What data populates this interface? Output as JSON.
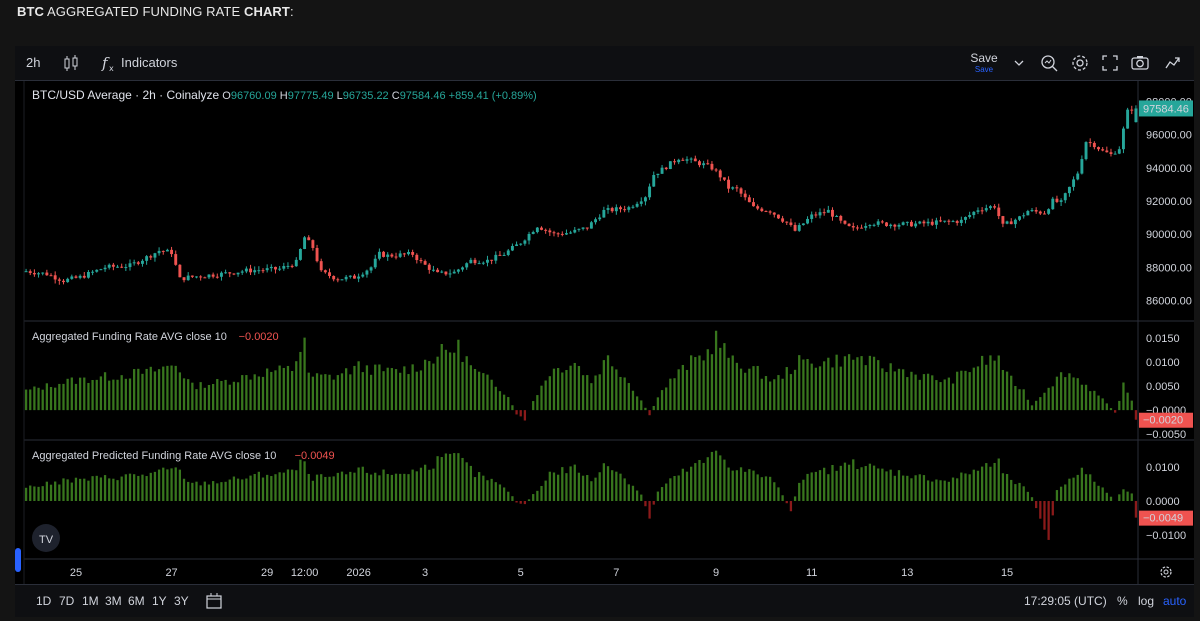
{
  "page": {
    "title_bold_1": "BTC",
    "title_middle": " AGGREGATED FUNDING RATE ",
    "title_bold_2": "CHART",
    "title_end": ":"
  },
  "toolbar": {
    "interval": "2h",
    "indicators": "Indicators",
    "save": "Save",
    "save_sub": "Save"
  },
  "bottom": {
    "ranges": [
      "1D",
      "7D",
      "1M",
      "3M",
      "6M",
      "1Y",
      "3Y"
    ],
    "time": "17:29:05 (UTC)",
    "percent": "%",
    "log": "log",
    "auto": "auto"
  },
  "colors": {
    "up": "#26a69a",
    "down": "#ef5350",
    "hist_up": "#38761d",
    "hist_down": "#8b1a1a",
    "grid": "#2a2e39",
    "accent": "#2962ff"
  },
  "chart_data": {
    "type": "candlestick",
    "title": "BTC/USD Average · 2h · Coinalyze",
    "ohlc": {
      "open": "96760.09",
      "high": "97775.49",
      "low": "96735.22",
      "close": "97584.46",
      "change": "+859.41 (+0.89%)"
    },
    "last_price": "97584.46",
    "y_ticks": [
      98000,
      96000,
      94000,
      92000,
      90000,
      88000,
      86000
    ],
    "y_tick_labels": [
      "98000.00",
      "96000.00",
      "94000.00",
      "92000.00",
      "90000.00",
      "88000.00",
      "86000.00"
    ],
    "ylim": [
      85000,
      99000
    ],
    "x_labels": [
      "25",
      "27",
      "29",
      "12:00",
      "2026",
      "3",
      "5",
      "7",
      "9",
      "11",
      "13",
      "15"
    ],
    "x_label_index": [
      12,
      35,
      58,
      67,
      80,
      96,
      119,
      142,
      166,
      189,
      212,
      236
    ],
    "price_path": [
      [
        0,
        87800
      ],
      [
        6,
        87600
      ],
      [
        10,
        87200
      ],
      [
        14,
        87400
      ],
      [
        20,
        88000
      ],
      [
        26,
        88100
      ],
      [
        30,
        88600
      ],
      [
        33,
        89000
      ],
      [
        36,
        88900
      ],
      [
        38,
        87300
      ],
      [
        40,
        87400
      ],
      [
        48,
        87600
      ],
      [
        54,
        87800
      ],
      [
        62,
        87900
      ],
      [
        66,
        88300
      ],
      [
        68,
        89800
      ],
      [
        70,
        89200
      ],
      [
        72,
        87700
      ],
      [
        76,
        87300
      ],
      [
        80,
        87400
      ],
      [
        84,
        88000
      ],
      [
        86,
        88800
      ],
      [
        88,
        88700
      ],
      [
        94,
        88800
      ],
      [
        96,
        88300
      ],
      [
        100,
        87600
      ],
      [
        104,
        87700
      ],
      [
        108,
        88400
      ],
      [
        112,
        88400
      ],
      [
        116,
        88800
      ],
      [
        120,
        89500
      ],
      [
        124,
        90500
      ],
      [
        128,
        90000
      ],
      [
        132,
        90100
      ],
      [
        136,
        90400
      ],
      [
        140,
        91400
      ],
      [
        146,
        91600
      ],
      [
        150,
        92300
      ],
      [
        152,
        93600
      ],
      [
        154,
        93900
      ],
      [
        158,
        94600
      ],
      [
        160,
        94500
      ],
      [
        164,
        94200
      ],
      [
        166,
        94000
      ],
      [
        168,
        93500
      ],
      [
        170,
        92800
      ],
      [
        172,
        92700
      ],
      [
        176,
        91600
      ],
      [
        180,
        91400
      ],
      [
        184,
        90700
      ],
      [
        186,
        90200
      ],
      [
        190,
        91100
      ],
      [
        194,
        91400
      ],
      [
        198,
        90500
      ],
      [
        200,
        90300
      ],
      [
        204,
        90700
      ],
      [
        208,
        90600
      ],
      [
        214,
        90600
      ],
      [
        220,
        90700
      ],
      [
        226,
        90800
      ],
      [
        230,
        91500
      ],
      [
        234,
        91700
      ],
      [
        236,
        90500
      ],
      [
        240,
        91000
      ],
      [
        242,
        91400
      ],
      [
        246,
        91300
      ],
      [
        248,
        92000
      ],
      [
        250,
        91900
      ],
      [
        252,
        92800
      ],
      [
        254,
        93700
      ],
      [
        256,
        95600
      ],
      [
        258,
        95400
      ],
      [
        260,
        95000
      ],
      [
        262,
        94800
      ],
      [
        264,
        95200
      ],
      [
        266,
        97400
      ],
      [
        267,
        97584
      ]
    ],
    "last_candle": {
      "open": 96760.09,
      "high": 97775.49,
      "low": 96735.22,
      "close": 97584.46
    },
    "candle_count": 268,
    "indicators": [
      {
        "name": "Aggregated Funding Rate AVG close 10",
        "value": "−0.0020",
        "last_value": -0.002,
        "y_ticks": [
          0.015,
          0.01,
          0.005,
          0,
          -0.005
        ],
        "y_tick_labels": [
          "0.0150",
          "0.0100",
          "0.0050",
          "−0.0000",
          "−0.0050"
        ],
        "ylim": [
          -0.0058,
          0.0175
        ],
        "badge": "−0.0020",
        "path": [
          [
            0,
            0.004
          ],
          [
            10,
            0.006
          ],
          [
            20,
            0.007
          ],
          [
            30,
            0.008
          ],
          [
            36,
            0.0095
          ],
          [
            40,
            0.005
          ],
          [
            48,
            0.006
          ],
          [
            58,
            0.008
          ],
          [
            64,
            0.0085
          ],
          [
            67,
            0.015
          ],
          [
            68,
            0.007
          ],
          [
            74,
            0.007
          ],
          [
            80,
            0.009
          ],
          [
            88,
            0.008
          ],
          [
            94,
            0.009
          ],
          [
            100,
            0.012
          ],
          [
            104,
            0.013
          ],
          [
            108,
            0.008
          ],
          [
            112,
            0.006
          ],
          [
            116,
            0.003
          ],
          [
            118,
            -0.001
          ],
          [
            120,
            -0.002
          ],
          [
            122,
            0.002
          ],
          [
            126,
            0.008
          ],
          [
            132,
            0.01
          ],
          [
            136,
            0.006
          ],
          [
            140,
            0.011
          ],
          [
            144,
            0.007
          ],
          [
            148,
            0.002
          ],
          [
            150,
            -0.001
          ],
          [
            152,
            0.003
          ],
          [
            156,
            0.007
          ],
          [
            160,
            0.01
          ],
          [
            164,
            0.012
          ],
          [
            166,
            0.015
          ],
          [
            170,
            0.01
          ],
          [
            176,
            0.008
          ],
          [
            180,
            0.006
          ],
          [
            186,
            0.01
          ],
          [
            192,
            0.01
          ],
          [
            200,
            0.011
          ],
          [
            206,
            0.009
          ],
          [
            210,
            0.0085
          ],
          [
            216,
            0.007
          ],
          [
            222,
            0.006
          ],
          [
            226,
            0.008
          ],
          [
            230,
            0.01
          ],
          [
            234,
            0.011
          ],
          [
            236,
            0.007
          ],
          [
            240,
            0.004
          ],
          [
            242,
            0.001
          ],
          [
            246,
            0.005
          ],
          [
            250,
            0.008
          ],
          [
            254,
            0.006
          ],
          [
            258,
            0.003
          ],
          [
            262,
            -0.0005
          ],
          [
            264,
            0.005
          ],
          [
            266,
            0.002
          ],
          [
            267,
            -0.002
          ]
        ]
      },
      {
        "name": "Aggregated Predicted Funding Rate AVG close 10",
        "value": "−0.0049",
        "last_value": -0.0049,
        "y_ticks": [
          0.01,
          0,
          -0.01
        ],
        "y_tick_labels": [
          "0.0100",
          "0.0000",
          "−0.0100"
        ],
        "ylim": [
          -0.0165,
          0.0165
        ],
        "badge": "−0.0049",
        "path": [
          [
            0,
            0.004
          ],
          [
            10,
            0.006
          ],
          [
            20,
            0.007
          ],
          [
            30,
            0.008
          ],
          [
            36,
            0.0095
          ],
          [
            40,
            0.005
          ],
          [
            48,
            0.006
          ],
          [
            58,
            0.008
          ],
          [
            64,
            0.0085
          ],
          [
            67,
            0.012
          ],
          [
            68,
            0.007
          ],
          [
            74,
            0.007
          ],
          [
            80,
            0.009
          ],
          [
            88,
            0.008
          ],
          [
            94,
            0.009
          ],
          [
            100,
            0.012
          ],
          [
            104,
            0.013
          ],
          [
            108,
            0.008
          ],
          [
            112,
            0.006
          ],
          [
            116,
            0.003
          ],
          [
            118,
            -0.0005
          ],
          [
            120,
            -0.001
          ],
          [
            122,
            0.002
          ],
          [
            126,
            0.008
          ],
          [
            132,
            0.01
          ],
          [
            136,
            0.006
          ],
          [
            140,
            0.011
          ],
          [
            144,
            0.007
          ],
          [
            148,
            0.002
          ],
          [
            150,
            -0.005
          ],
          [
            152,
            0.003
          ],
          [
            156,
            0.007
          ],
          [
            160,
            0.01
          ],
          [
            164,
            0.012
          ],
          [
            166,
            0.015
          ],
          [
            170,
            0.01
          ],
          [
            176,
            0.008
          ],
          [
            180,
            0.006
          ],
          [
            184,
            -0.003
          ],
          [
            186,
            0.006
          ],
          [
            192,
            0.009
          ],
          [
            200,
            0.011
          ],
          [
            206,
            0.009
          ],
          [
            210,
            0.0085
          ],
          [
            216,
            0.007
          ],
          [
            222,
            0.006
          ],
          [
            226,
            0.008
          ],
          [
            230,
            0.01
          ],
          [
            234,
            0.011
          ],
          [
            236,
            0.007
          ],
          [
            240,
            0.004
          ],
          [
            242,
            0.001
          ],
          [
            246,
            -0.012
          ],
          [
            248,
            0.003
          ],
          [
            252,
            0.008
          ],
          [
            254,
            0.009
          ],
          [
            258,
            0.005
          ],
          [
            262,
            0.0
          ],
          [
            264,
            0.004
          ],
          [
            266,
            0.002
          ],
          [
            267,
            -0.0049
          ]
        ]
      }
    ]
  }
}
